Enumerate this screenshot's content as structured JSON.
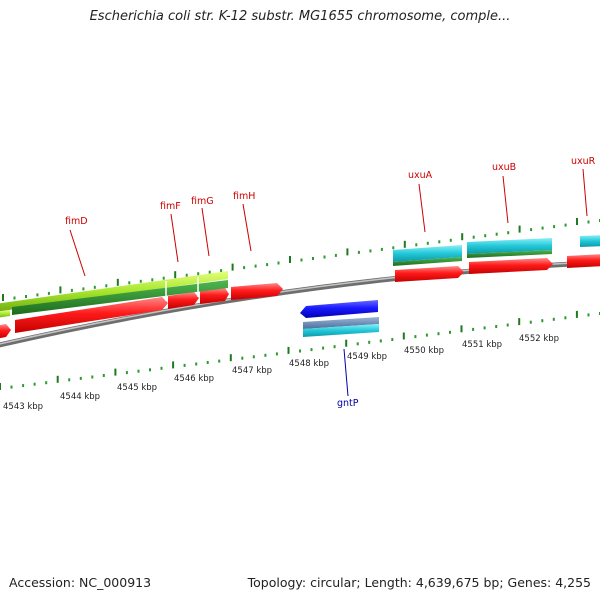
{
  "title": "Escherichia coli str. K-12 substr. MG1655 chromosome, comple...",
  "footer": {
    "accession": "Accession: NC_000913",
    "topology": "Topology: circular; Length: 4,639,675 bp; Genes: 4,255"
  },
  "colors": {
    "forward_gene": "#ff1a1a",
    "reverse_gene": "#1a1aff",
    "forward_cds_light": "#a6e62e",
    "forward_cds_dark": "#2d8a2d",
    "cyan_cds": "#22c8d8",
    "label_forward": "#cc0000",
    "label_reverse": "#0000aa",
    "backbone": "#8a8a8a"
  },
  "kbp_ticks": [
    {
      "label": "4543 kbp"
    },
    {
      "label": "4544 kbp"
    },
    {
      "label": "4545 kbp"
    },
    {
      "label": "4546 kbp"
    },
    {
      "label": "4547 kbp"
    },
    {
      "label": "4548 kbp"
    },
    {
      "label": "4549 kbp"
    },
    {
      "label": "4550 kbp"
    },
    {
      "label": "4551 kbp"
    },
    {
      "label": "4552 kbp"
    }
  ],
  "genes": [
    {
      "name": "fimD",
      "strand": "+"
    },
    {
      "name": "fimF",
      "strand": "+"
    },
    {
      "name": "fimG",
      "strand": "+"
    },
    {
      "name": "fimH",
      "strand": "+"
    },
    {
      "name": "uxuA",
      "strand": "+"
    },
    {
      "name": "uxuB",
      "strand": "+"
    },
    {
      "name": "uxuR",
      "strand": "+"
    },
    {
      "name": "gntP",
      "strand": "-"
    }
  ]
}
